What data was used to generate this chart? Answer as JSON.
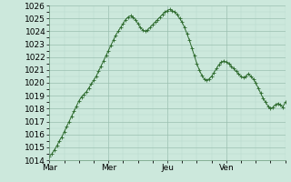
{
  "background_color": "#cce8dc",
  "plot_bg_color": "#cce8dc",
  "line_color": "#2d6a2d",
  "marker_color": "#2d6a2d",
  "grid_color_major": "#9abfb0",
  "grid_color_minor": "#b8d8cc",
  "ylim": [
    1014,
    1026
  ],
  "yticks": [
    1014,
    1015,
    1016,
    1017,
    1018,
    1019,
    1020,
    1021,
    1022,
    1023,
    1024,
    1025,
    1026
  ],
  "xtick_labels": [
    "Mar",
    "Mer",
    "Jeu",
    "Ven"
  ],
  "tick_fontsize": 6.5,
  "num_points": 97,
  "values": [
    1014.3,
    1014.5,
    1014.8,
    1015.1,
    1015.5,
    1015.8,
    1016.2,
    1016.6,
    1017.0,
    1017.4,
    1017.8,
    1018.2,
    1018.6,
    1018.9,
    1019.1,
    1019.3,
    1019.6,
    1019.9,
    1020.2,
    1020.5,
    1020.9,
    1021.3,
    1021.7,
    1022.1,
    1022.5,
    1022.9,
    1023.3,
    1023.7,
    1024.0,
    1024.3,
    1024.6,
    1024.9,
    1025.1,
    1025.2,
    1025.1,
    1024.9,
    1024.6,
    1024.3,
    1024.1,
    1024.0,
    1024.1,
    1024.3,
    1024.5,
    1024.7,
    1024.9,
    1025.1,
    1025.3,
    1025.5,
    1025.6,
    1025.7,
    1025.6,
    1025.5,
    1025.3,
    1025.0,
    1024.7,
    1024.3,
    1023.8,
    1023.3,
    1022.7,
    1022.1,
    1021.5,
    1021.0,
    1020.6,
    1020.3,
    1020.2,
    1020.3,
    1020.5,
    1020.8,
    1021.1,
    1021.4,
    1021.6,
    1021.7,
    1021.6,
    1021.5,
    1021.3,
    1021.1,
    1020.9,
    1020.7,
    1020.5,
    1020.4,
    1020.5,
    1020.7,
    1020.5,
    1020.3,
    1020.0,
    1019.6,
    1019.2,
    1018.8,
    1018.5,
    1018.2,
    1018.0,
    1018.1,
    1018.3,
    1018.4,
    1018.3,
    1018.1,
    1018.5
  ]
}
